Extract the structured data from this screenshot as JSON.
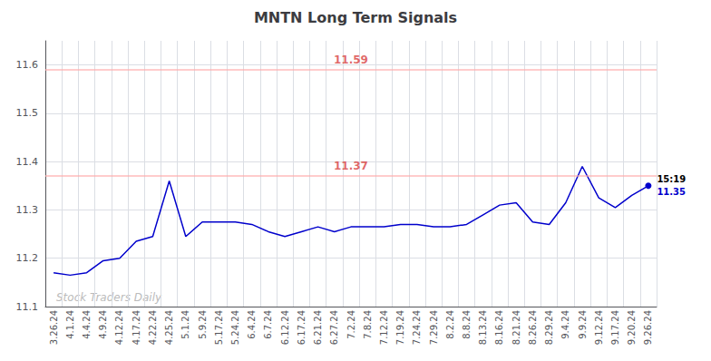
{
  "chart_data": {
    "type": "line",
    "title": "MNTN Long Term Signals",
    "categories": [
      "3.26.24",
      "4.1.24",
      "4.4.24",
      "4.9.24",
      "4.12.24",
      "4.17.24",
      "4.22.24",
      "4.25.24",
      "5.1.24",
      "5.9.24",
      "5.17.24",
      "5.24.24",
      "6.4.24",
      "6.7.24",
      "6.12.24",
      "6.17.24",
      "6.21.24",
      "6.27.24",
      "7.2.24",
      "7.8.24",
      "7.12.24",
      "7.19.24",
      "7.24.24",
      "7.29.24",
      "8.2.24",
      "8.8.24",
      "8.13.24",
      "8.16.24",
      "8.21.24",
      "8.26.24",
      "8.29.24",
      "9.4.24",
      "9.9.24",
      "9.12.24",
      "9.17.24",
      "9.20.24",
      "9.26.24"
    ],
    "values": [
      11.17,
      11.165,
      11.17,
      11.195,
      11.2,
      11.235,
      11.245,
      11.36,
      11.245,
      11.275,
      11.275,
      11.275,
      11.27,
      11.255,
      11.245,
      11.255,
      11.265,
      11.255,
      11.265,
      11.265,
      11.265,
      11.27,
      11.27,
      11.265,
      11.265,
      11.27,
      11.29,
      11.31,
      11.315,
      11.275,
      11.27,
      11.315,
      11.39,
      11.325,
      11.305,
      11.33,
      11.35
    ],
    "color": "#0000cc",
    "ylim": [
      11.1,
      11.65
    ],
    "yticks": [
      11.1,
      11.2,
      11.3,
      11.4,
      11.5,
      11.6
    ],
    "grid": true,
    "reference_lines": [
      {
        "value": 11.59,
        "label": "11.59",
        "color": "#ffaaaa",
        "label_color": "#cc0000"
      },
      {
        "value": 11.37,
        "label": "11.37",
        "color": "#ffaaaa",
        "label_color": "#cc0000"
      }
    ],
    "watermark": "Stock Traders Daily",
    "watermark_color": "#bbbbbb",
    "last_point_labels": [
      "15:19",
      "11.35"
    ],
    "last_point_label_colors": [
      "#000000",
      "#0000cc"
    ]
  }
}
